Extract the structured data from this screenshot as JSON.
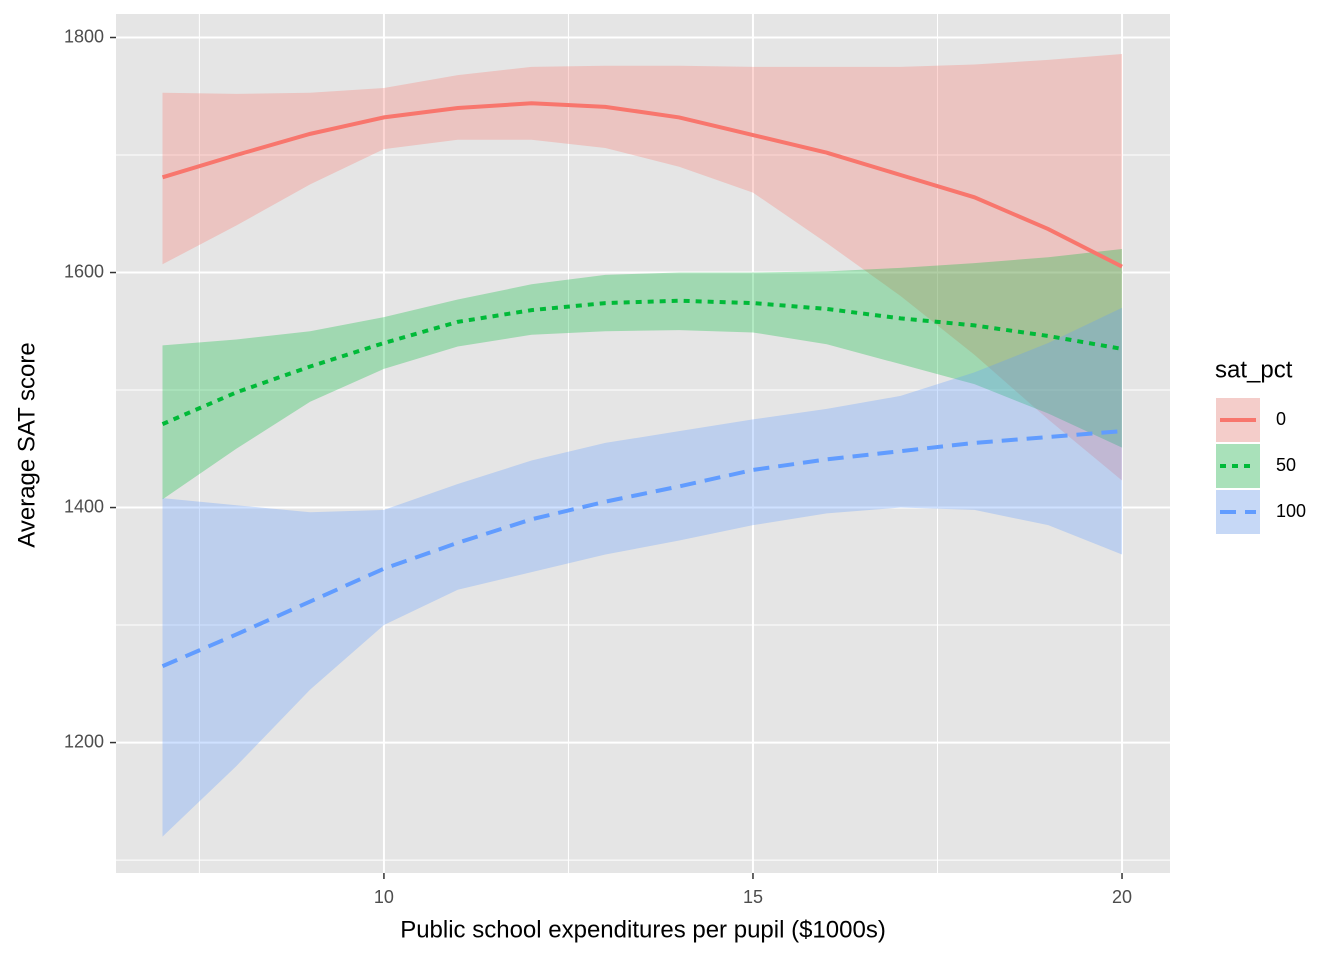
{
  "chart_data": {
    "type": "smooth",
    "x_label": "Public school expenditures per pupil ($1000s)",
    "y_label": "Average SAT score",
    "legend_title": "sat_pct",
    "legend_position": "right",
    "grid": true,
    "x": [
      7,
      8,
      9,
      10,
      11,
      12,
      13,
      14,
      15,
      16,
      17,
      18,
      19,
      20
    ],
    "series": [
      {
        "name": "0",
        "color": "#F8766D",
        "linetype": "solid",
        "values": [
          1681,
          1700,
          1718,
          1732,
          1740,
          1744,
          1741,
          1732,
          1717,
          1702,
          1683,
          1664,
          1637,
          1605
        ],
        "lower": [
          1607,
          1640,
          1675,
          1705,
          1713,
          1713,
          1706,
          1690,
          1668,
          1625,
          1580,
          1530,
          1475,
          1423
        ],
        "upper": [
          1753,
          1752,
          1753,
          1757,
          1768,
          1775,
          1776,
          1776,
          1775,
          1775,
          1775,
          1777,
          1781,
          1786
        ]
      },
      {
        "name": "50",
        "color": "#00BA38",
        "linetype": "dotted",
        "values": [
          1471,
          1498,
          1520,
          1540,
          1558,
          1568,
          1574,
          1576,
          1574,
          1569,
          1561,
          1555,
          1546,
          1535
        ],
        "lower": [
          1407,
          1450,
          1490,
          1518,
          1537,
          1547,
          1550,
          1551,
          1549,
          1539,
          1522,
          1505,
          1480,
          1451
        ],
        "upper": [
          1538,
          1543,
          1550,
          1562,
          1577,
          1590,
          1598,
          1600,
          1600,
          1601,
          1604,
          1608,
          1613,
          1620
        ]
      },
      {
        "name": "100",
        "color": "#619CFF",
        "linetype": "dashed",
        "values": [
          1265,
          1292,
          1320,
          1348,
          1370,
          1390,
          1405,
          1418,
          1432,
          1441,
          1448,
          1455,
          1460,
          1465
        ],
        "lower": [
          1120,
          1180,
          1245,
          1300,
          1330,
          1345,
          1360,
          1372,
          1385,
          1395,
          1400,
          1398,
          1385,
          1360
        ],
        "upper": [
          1408,
          1402,
          1396,
          1398,
          1420,
          1440,
          1455,
          1465,
          1475,
          1484,
          1495,
          1515,
          1540,
          1570
        ]
      }
    ],
    "xlim": [
      6.37,
      20.65
    ],
    "xticks": [
      10,
      15,
      20
    ],
    "x_minor_ticks": [
      7.5,
      12.5,
      17.5
    ],
    "ylim": [
      1089,
      1820
    ],
    "yticks": [
      1200,
      1400,
      1600,
      1800
    ],
    "y_minor_ticks": [
      1100,
      1300,
      1500,
      1700
    ]
  }
}
